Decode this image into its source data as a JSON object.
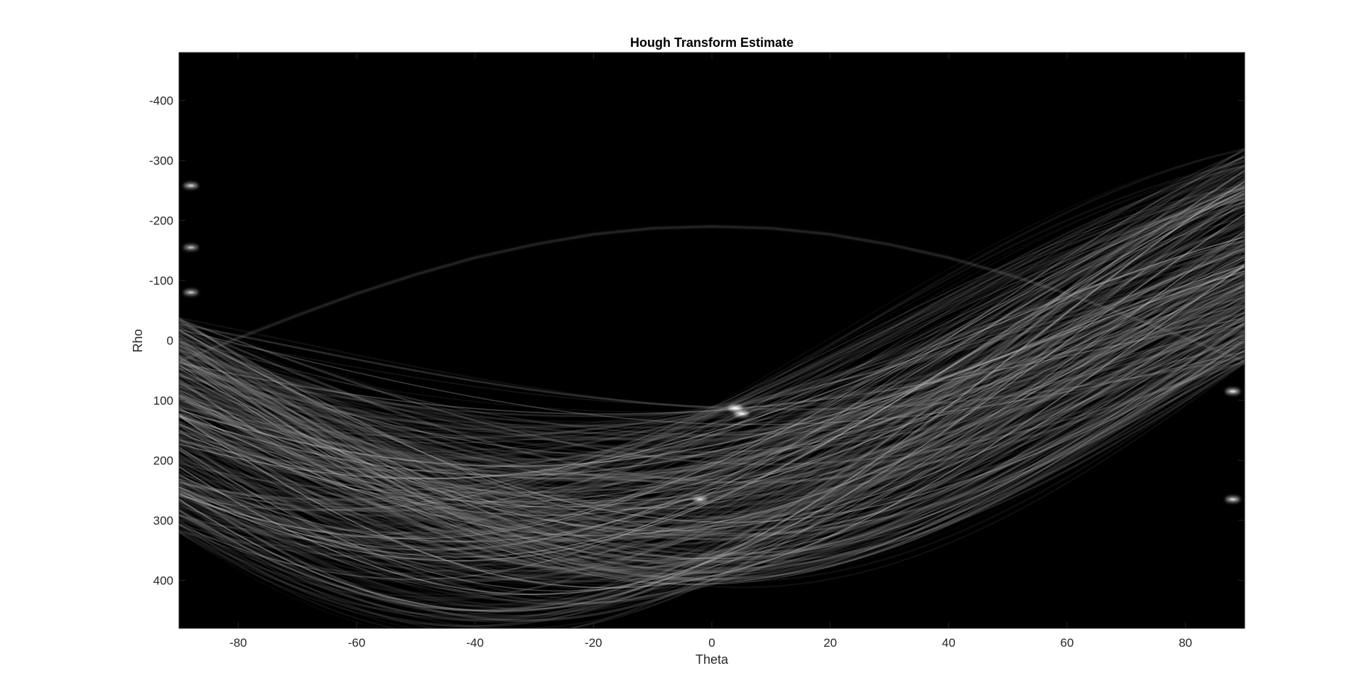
{
  "chart_data": {
    "type": "heatmap",
    "title": "Hough Transform Estimate",
    "xlabel": "Theta",
    "ylabel": "Rho",
    "xlim": [
      -90,
      90
    ],
    "ylim": [
      -480,
      480
    ],
    "y_direction": "reverse",
    "colormap": "gray",
    "background_color": "#000000",
    "grid": false,
    "x_ticks": [
      -80,
      -60,
      -40,
      -20,
      0,
      20,
      40,
      60,
      80
    ],
    "x_tick_labels": [
      "-80",
      "-60",
      "-40",
      "-20",
      "0",
      "20",
      "40",
      "60",
      "80"
    ],
    "y_ticks": [
      -400,
      -300,
      -200,
      -100,
      0,
      100,
      200,
      300,
      400
    ],
    "y_tick_labels": [
      "-400",
      "-300",
      "-200",
      "-100",
      "0",
      "100",
      "200",
      "300",
      "400"
    ],
    "series": [
      {
        "values": [
          [
            -90,
            35
          ],
          [
            -80,
            -4
          ],
          [
            -70,
            -42
          ],
          [
            -60,
            -78
          ],
          [
            -50,
            -110
          ],
          [
            -40,
            -138
          ],
          [
            -30,
            -160
          ],
          [
            -20,
            -177
          ],
          [
            -10,
            -187
          ],
          [
            0,
            -190
          ],
          [
            10,
            -187
          ],
          [
            20,
            -177
          ],
          [
            30,
            -160
          ],
          [
            40,
            -138
          ],
          [
            50,
            -110
          ],
          [
            60,
            -78
          ],
          [
            70,
            -42
          ],
          [
            80,
            -4
          ],
          [
            90,
            35
          ]
        ],
        "note_intensity": 0.55
      },
      {
        "values": [
          [
            -90,
            40
          ],
          [
            -80,
            88
          ],
          [
            -70,
            130
          ],
          [
            -60,
            167
          ],
          [
            -50,
            196
          ],
          [
            -40,
            217
          ],
          [
            -30,
            230
          ],
          [
            -20,
            233
          ],
          [
            -10,
            227
          ],
          [
            0,
            211
          ],
          [
            10,
            188
          ],
          [
            20,
            157
          ],
          [
            30,
            119
          ],
          [
            40,
            76
          ],
          [
            50,
            30
          ],
          [
            60,
            -19
          ],
          [
            70,
            -67
          ],
          [
            80,
            -114
          ],
          [
            90,
            -158
          ]
        ]
      }
    ],
    "peaks": [
      {
        "theta": 4,
        "rho": 113,
        "intensity": 1.0
      },
      {
        "theta": 5,
        "rho": 122,
        "intensity": 0.95
      },
      {
        "theta": -2,
        "rho": 265,
        "intensity": 0.7
      },
      {
        "theta": 88,
        "rho": 85,
        "intensity": 0.85
      },
      {
        "theta": 88,
        "rho": 265,
        "intensity": 0.8
      },
      {
        "theta": -88,
        "rho": -258,
        "intensity": 0.75
      },
      {
        "theta": -88,
        "rho": -80,
        "intensity": 0.7
      },
      {
        "theta": -88,
        "rho": -155,
        "intensity": 0.65
      }
    ]
  }
}
